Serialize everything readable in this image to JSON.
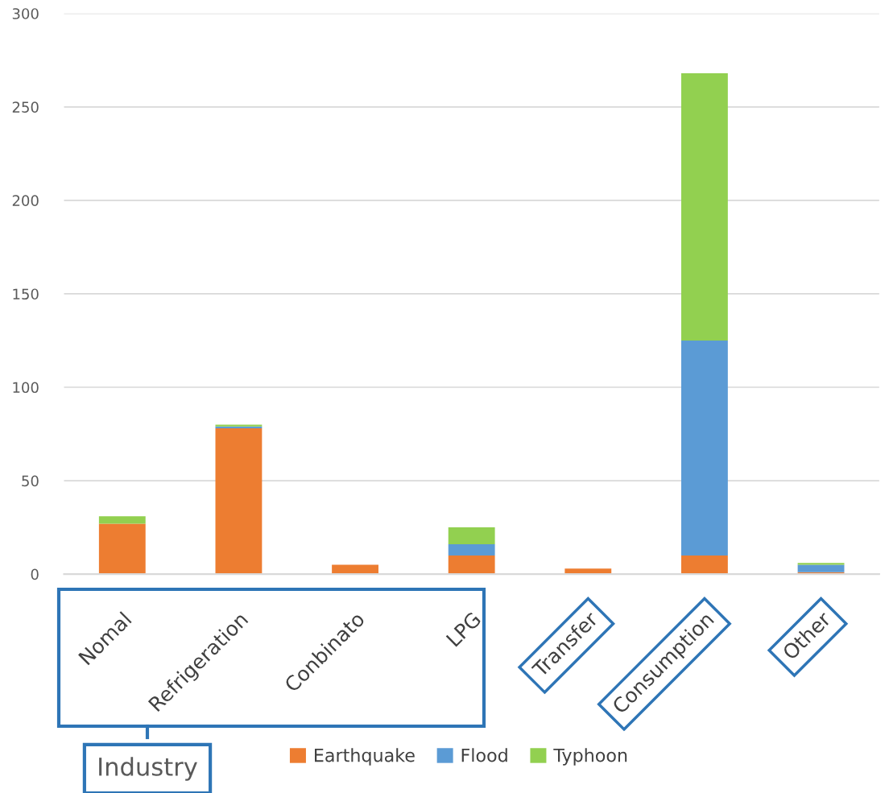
{
  "chart_data": {
    "type": "bar",
    "stacked": true,
    "categories": [
      "Nomal",
      "Refrigeration",
      "Conbinato",
      "LPG",
      "Transfer",
      "Consumption",
      "Other"
    ],
    "series": [
      {
        "name": "Earthquake",
        "color": "#ed7d31",
        "values": [
          27,
          78,
          5,
          10,
          3,
          10,
          1
        ]
      },
      {
        "name": "Flood",
        "color": "#5b9bd5",
        "values": [
          0,
          1,
          0,
          6,
          0,
          115,
          4
        ]
      },
      {
        "name": "Typhoon",
        "color": "#92d050",
        "values": [
          4,
          1,
          0,
          9,
          0,
          143,
          1
        ]
      }
    ],
    "ylim": [
      0,
      300
    ],
    "yticks": [
      0,
      50,
      100,
      150,
      200,
      250,
      300
    ],
    "grid": "y",
    "legend": "bottom",
    "annotations": [
      "Industry"
    ]
  }
}
